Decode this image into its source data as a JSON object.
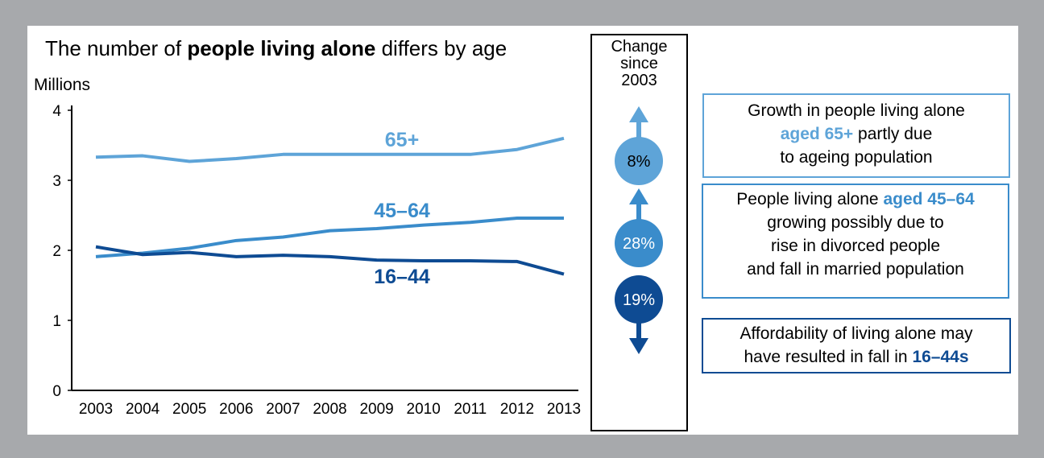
{
  "title": {
    "before": "The number of ",
    "bold": "people living alone",
    "after": " differs by age"
  },
  "chart_data": {
    "type": "line",
    "title": "The number of people living alone differs by age",
    "ylabel": "Millions",
    "xlabel": "",
    "x": [
      "2003",
      "2004",
      "2005",
      "2006",
      "2007",
      "2008",
      "2009",
      "2010",
      "2011",
      "2012",
      "2013"
    ],
    "ylim": [
      0,
      4
    ],
    "yticks": [
      "0",
      "1",
      "2",
      "3",
      "4"
    ],
    "grid": false,
    "series": [
      {
        "name": "65+",
        "color": "#5ea4d8",
        "values": [
          3.33,
          3.35,
          3.27,
          3.31,
          3.37,
          3.37,
          3.37,
          3.37,
          3.37,
          3.44,
          3.6
        ]
      },
      {
        "name": "45–64",
        "color": "#3a8ccb",
        "values": [
          1.91,
          1.96,
          2.03,
          2.14,
          2.19,
          2.28,
          2.31,
          2.36,
          2.4,
          2.46,
          2.46
        ]
      },
      {
        "name": "16–44",
        "color": "#0e4b93",
        "values": [
          2.05,
          1.94,
          1.97,
          1.91,
          1.93,
          1.91,
          1.86,
          1.85,
          1.85,
          1.84,
          1.66
        ]
      }
    ]
  },
  "change": {
    "label_lines": [
      "Change",
      "since",
      "2003"
    ],
    "items": [
      {
        "group": "65+",
        "pct": "8%",
        "direction": "up",
        "color": "#5ea4d8"
      },
      {
        "group": "45–64",
        "pct": "28%",
        "direction": "up",
        "color": "#3a8ccb"
      },
      {
        "group": "16–44",
        "pct": "19%",
        "direction": "down",
        "color": "#0e4b93"
      }
    ]
  },
  "notes": {
    "n65": {
      "line1": "Growth in people living alone",
      "hl": "aged 65+",
      "rest2": " partly due",
      "line3": "to ageing population"
    },
    "n4564": {
      "pre": "People living alone ",
      "hl": "aged 45–64",
      "line2": "growing possibly due to",
      "line3": "rise in divorced people",
      "line4": "and fall in married population"
    },
    "n1644": {
      "line1": "Affordability of living alone may",
      "pre2": "have resulted in fall in ",
      "hl": "16–44s"
    }
  }
}
